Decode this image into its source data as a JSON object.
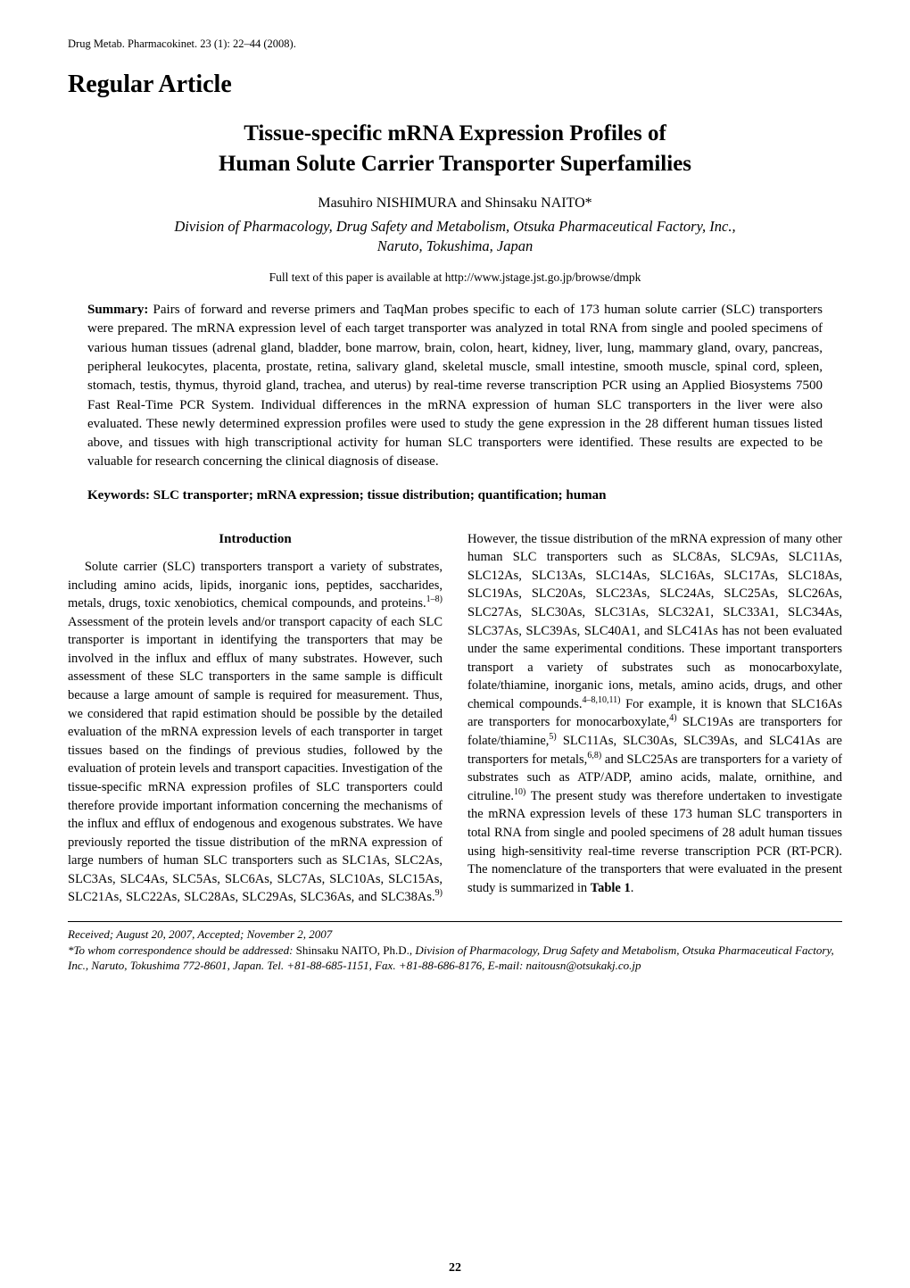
{
  "journal_header": "Drug Metab. Pharmacokinet. 23 (1): 22–44 (2008).",
  "section_label": "Regular Article",
  "title_line1": "Tissue-specific mRNA Expression Profiles of",
  "title_line2": "Human Solute Carrier Transporter Superfamilies",
  "authors_html": "Masuhiro N<span class=\"surname\">ISHIMURA</span> and Shinsaku N<span class=\"surname\">AITO</span>*",
  "affiliation_line1": "Division of Pharmacology, Drug Safety and Metabolism, Otsuka Pharmaceutical Factory, Inc.,",
  "affiliation_line2": "Naruto, Tokushima, Japan",
  "fulltext_link": "Full text of this paper is available at http://www.jstage.jst.go.jp/browse/dmpk",
  "summary_label": "Summary:",
  "summary_text": " Pairs of forward and reverse primers and TaqMan probes specific to each of 173 human solute carrier (SLC) transporters were prepared. The mRNA expression level of each target transporter was analyzed in total RNA from single and pooled specimens of various human tissues (adrenal gland, bladder, bone marrow, brain, colon, heart, kidney, liver, lung, mammary gland, ovary, pancreas, peripheral leukocytes, placenta, prostate, retina, salivary gland, skeletal muscle, small intestine, smooth muscle, spinal cord, spleen, stomach, testis, thymus, thyroid gland, trachea, and uterus) by real-time reverse transcription PCR using an Applied Biosystems 7500 Fast Real-Time PCR System. Individual differences in the mRNA expression of human SLC transporters in the liver were also evaluated. These newly determined expression profiles were used to study the gene expression in the 28 different human tissues listed above, and tissues with high transcriptional activity for human SLC transporters were identified. These results are expected to be valuable for research concerning the clinical diagnosis of disease.",
  "keywords_label": "Keywords: ",
  "keywords_text": "SLC transporter; mRNA expression; tissue distribution; quantification; human",
  "intro_heading": "Introduction",
  "intro_para_html": "Solute carrier (SLC) transporters transport a variety of substrates, including amino acids, lipids, inorganic ions, peptides, saccharides, metals, drugs, toxic xenobiotics, chemical compounds, and proteins.<span class=\"sup\">1–8)</span> Assessment of the protein levels and/or transport capacity of each SLC transporter is important in identifying the transporters that may be involved in the influx and efflux of many substrates. However, such assessment of these SLC transporters in the same sample is difficult because a large amount of sample is required for measurement. Thus, we considered that rapid estimation should be possible by the detailed evaluation of the mRNA expression levels of each transporter in target tissues based on the findings of previous studies, followed by the evaluation of protein levels and transport capacities. Investigation of the tissue-specific mRNA expression profiles of SLC transporters could therefore provide important information concerning the mechanisms of the influx and efflux of endogenous and exogenous substrates. We have previously reported the tissue distribution of the mRNA expression of large numbers of human SLC transporters such as SLC1As, SLC2As, SLC3As, SLC4As, SLC5As, SLC6As, SLC7As, SLC10As, SLC15As, SLC21As, SLC22As, SLC28As, SLC29As, SLC36As, and SLC38As.<span class=\"sup\">9)</span> However, the tissue distribution of the mRNA expression of many other human SLC transporters such as SLC8As, SLC9As, SLC11As, SLC12As, SLC13As, SLC14As, SLC16As, SLC17As, SLC18As, SLC19As, SLC20As, SLC23As, SLC24As, SLC25As, SLC26As, SLC27As, SLC30As, SLC31As, SLC32A1, SLC33A1, SLC34As, SLC37As, SLC39As, SLC40A1, and SLC41As has not been evaluated under the same experimental conditions. These important transporters transport a variety of substrates such as monocarboxylate, folate/thiamine, inorganic ions, metals, amino acids, drugs, and other chemical compounds.<span class=\"sup\">4–8,10,11)</span> For example, it is known that SLC16As are transporters for monocarboxylate,<span class=\"sup\">4)</span> SLC19As are transporters for folate/thiamine,<span class=\"sup\">5)</span> SLC11As, SLC30As, SLC39As, and SLC41As are transporters for metals,<span class=\"sup\">6,8)</span> and SLC25As are transporters for a variety of substrates such as ATP/ADP, amino acids, malate, ornithine, and citruline.<span class=\"sup\">10)</span> The present study was therefore undertaken to investigate the mRNA expression levels of these 173 human SLC transporters in total RNA from single and pooled specimens of 28 adult human tissues using high-sensitivity real-time reverse transcription PCR (RT-PCR). The nomenclature of the transporters that were evaluated in the present study is summarized in <span class=\"bold\">Table 1</span>.",
  "footer_received": "Received; August 20, 2007, Accepted; November 2, 2007",
  "footer_corr_html": "*To whom correspondence should be addressed: <span class=\"upright\">Shinsaku N<span style=\"font-variant:small-caps\">AITO</span>, Ph.D.,</span> Division of Pharmacology, Drug Safety and Metabolism, Otsuka Pharmaceutical Factory, Inc., Naruto, Tokushima 772-8601, Japan. Tel. +81-88-685-1151, Fax. +81-88-686-8176, E-mail: naitousn@otsukakj.co.jp",
  "page_number": "22"
}
